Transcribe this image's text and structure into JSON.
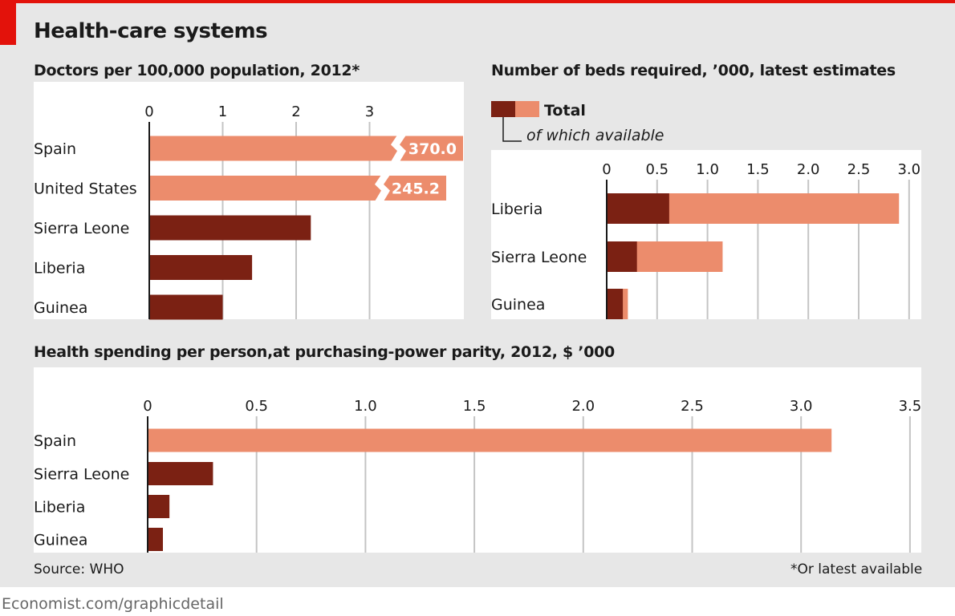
{
  "header": {
    "title": "Health-care systems",
    "source": "Source: WHO",
    "footnote": "*Or latest available",
    "credit": "Economist.com/graphicdetail"
  },
  "colors": {
    "light": "#ec8c6c",
    "dark": "#7b2113",
    "grid": "#c4c4c4",
    "plot_bg": "#ffffff",
    "accent": "#e3120b"
  },
  "chart_data": [
    {
      "id": "doctors",
      "type": "bar",
      "orientation": "horizontal",
      "title": "Doctors per 100,000 population, 2012*",
      "categories": [
        "Spain",
        "United States",
        "Sierra Leone",
        "Liberia",
        "Guinea"
      ],
      "values": [
        370.0,
        245.2,
        2.2,
        1.4,
        1.0
      ],
      "value_labels": [
        "370.0",
        "245.2",
        "",
        "",
        ""
      ],
      "broken_axis": [
        true,
        true,
        false,
        false,
        false
      ],
      "bar_colors": [
        "light",
        "light",
        "dark",
        "dark",
        "dark"
      ],
      "ticks": [
        "0",
        "1",
        "2",
        "3"
      ],
      "xlim": [
        0,
        4.3
      ],
      "grid": true,
      "axis_position": "top"
    },
    {
      "id": "beds",
      "type": "bar",
      "orientation": "horizontal",
      "stacked": true,
      "title": "Number of beds required, ’000, latest estimates",
      "categories": [
        "Liberia",
        "Sierra Leone",
        "Guinea"
      ],
      "series": [
        {
          "name": "Total",
          "values": [
            2.9,
            1.15,
            0.21
          ]
        },
        {
          "name": "of which available",
          "values": [
            0.62,
            0.3,
            0.16
          ]
        }
      ],
      "ticks": [
        "0",
        "0.5",
        "1.0",
        "1.5",
        "2.0",
        "2.5",
        "3.0"
      ],
      "xlim": [
        0,
        3.0
      ],
      "grid": true,
      "legend": "top-left",
      "axis_position": "top"
    },
    {
      "id": "spending",
      "type": "bar",
      "orientation": "horizontal",
      "title": "Health spending per person,at purchasing-power parity, 2012, $ ’000",
      "categories": [
        "Spain",
        "Sierra Leone",
        "Liberia",
        "Guinea"
      ],
      "values": [
        3.14,
        0.3,
        0.1,
        0.07
      ],
      "bar_colors": [
        "light",
        "dark",
        "dark",
        "dark"
      ],
      "ticks": [
        "0",
        "0.5",
        "1.0",
        "1.5",
        "2.0",
        "2.5",
        "3.0",
        "3.5"
      ],
      "xlim": [
        0,
        3.5
      ],
      "grid": true,
      "axis_position": "top"
    }
  ]
}
